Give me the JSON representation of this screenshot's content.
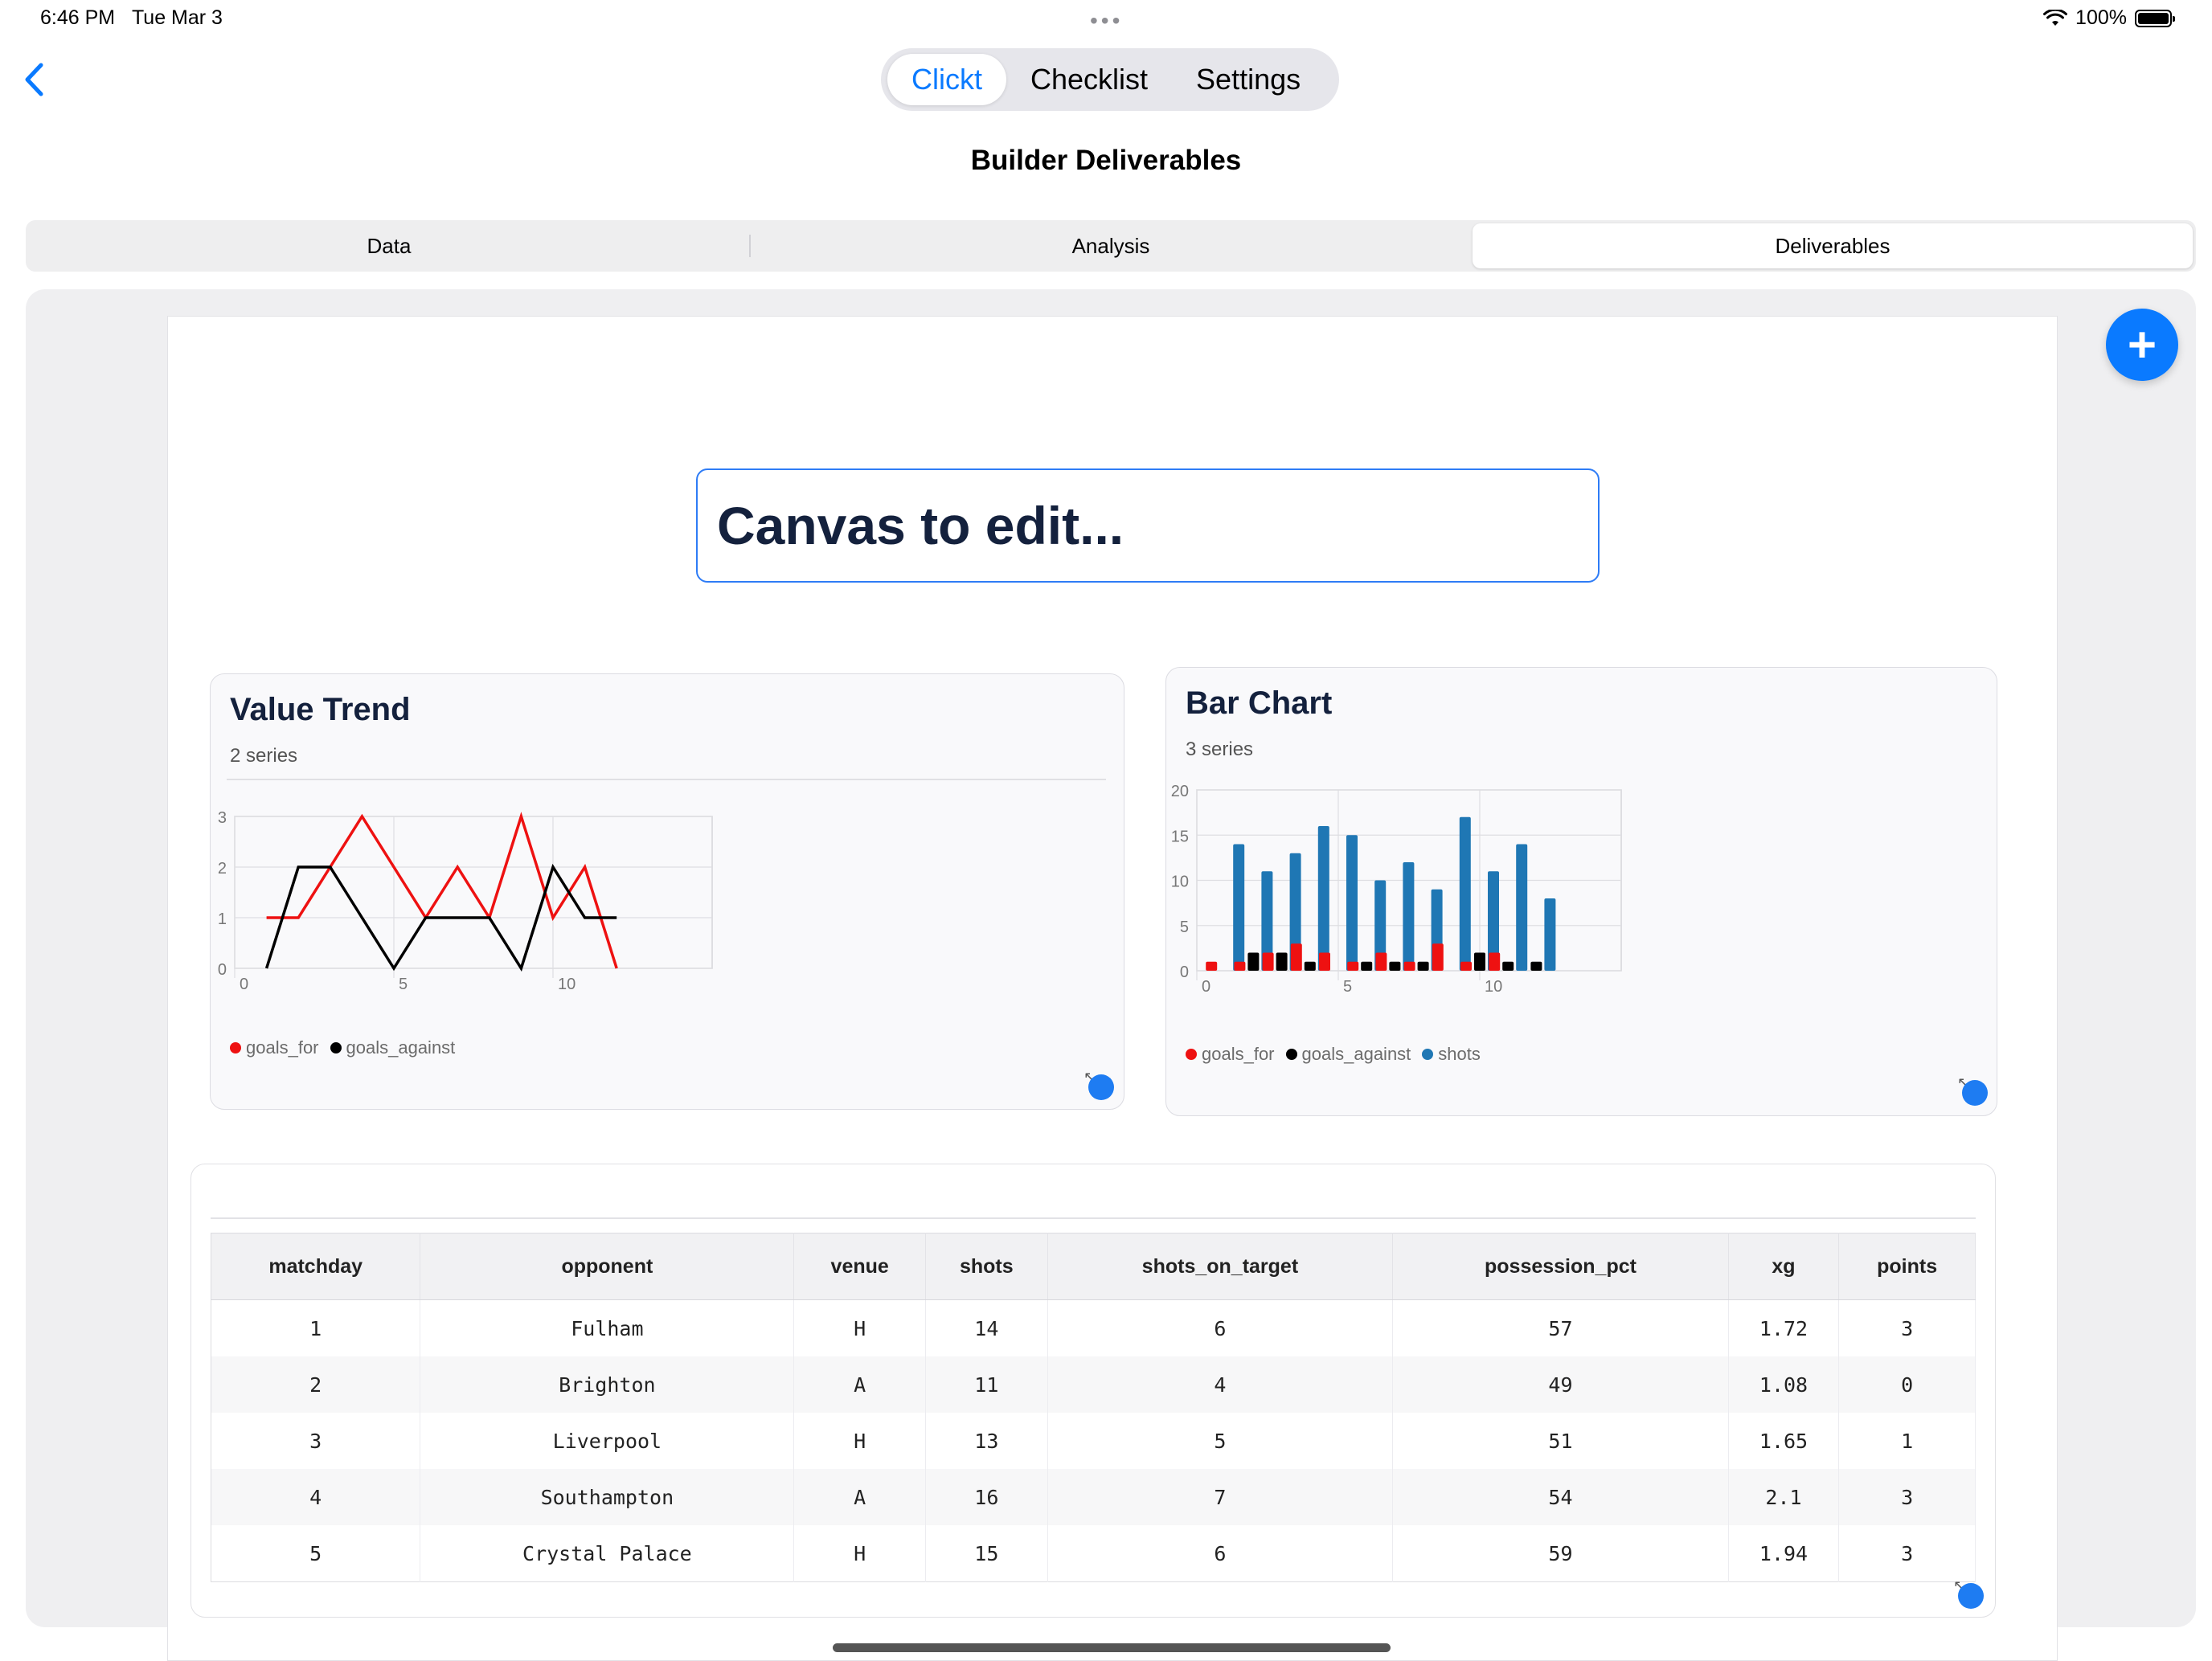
{
  "status": {
    "time": "6:46 PM",
    "date": "Tue Mar 3",
    "battery": "100%"
  },
  "nav": {
    "top_tabs": [
      {
        "label": "Clickt",
        "active": true
      },
      {
        "label": "Checklist",
        "active": false
      },
      {
        "label": "Settings",
        "active": false
      }
    ],
    "page_title": "Builder Deliverables"
  },
  "tabs": [
    {
      "label": "Data",
      "active": false
    },
    {
      "label": "Analysis",
      "active": false
    },
    {
      "label": "Deliverables",
      "active": true
    }
  ],
  "canvas": {
    "title": "Canvas to edit..."
  },
  "colors": {
    "accent": "#0a7aff",
    "goals_for": "#ee1111",
    "goals_against": "#000000",
    "shots": "#1f77b4"
  },
  "chart_data": [
    {
      "type": "line",
      "title": "Value Trend",
      "subtitle": "2 series",
      "xlim": [
        0,
        15
      ],
      "ylim": [
        0,
        3
      ],
      "xticks": [
        0,
        5,
        10
      ],
      "yticks": [
        0,
        1,
        2,
        3
      ],
      "grid": true,
      "legend_position": "bottom-left",
      "x": [
        1,
        2,
        3,
        4,
        5,
        6,
        7,
        8,
        9,
        10,
        11,
        12
      ],
      "series": [
        {
          "name": "goals_for",
          "color": "#ee1111",
          "values": [
            1,
            1,
            2,
            3,
            2,
            1,
            2,
            1,
            3,
            1,
            2,
            0
          ]
        },
        {
          "name": "goals_against",
          "color": "#000000",
          "values": [
            0,
            2,
            2,
            1,
            0,
            1,
            1,
            1,
            0,
            2,
            1,
            1
          ]
        }
      ]
    },
    {
      "type": "bar",
      "title": "Bar Chart",
      "subtitle": "3 series",
      "xlim": [
        0,
        15
      ],
      "ylim": [
        0,
        20
      ],
      "xticks": [
        0,
        5,
        10
      ],
      "yticks": [
        0,
        5,
        10,
        15,
        20
      ],
      "grid": true,
      "legend_position": "bottom-left",
      "x": [
        1,
        2,
        3,
        4,
        5,
        6,
        7,
        8,
        9,
        10,
        11,
        12
      ],
      "series": [
        {
          "name": "goals_for",
          "color": "#ee1111",
          "values": [
            1,
            1,
            2,
            3,
            2,
            1,
            2,
            1,
            3,
            1,
            2,
            0
          ]
        },
        {
          "name": "goals_against",
          "color": "#000000",
          "values": [
            0,
            2,
            2,
            1,
            0,
            1,
            1,
            1,
            0,
            2,
            1,
            1
          ]
        },
        {
          "name": "shots",
          "color": "#1f77b4",
          "values": [
            14,
            11,
            13,
            16,
            15,
            10,
            12,
            9,
            17,
            11,
            14,
            8
          ]
        }
      ]
    }
  ],
  "table": {
    "columns": [
      "matchday",
      "opponent",
      "venue",
      "shots",
      "shots_on_target",
      "possession_pct",
      "xg",
      "points"
    ],
    "rows": [
      [
        "1",
        "Fulham",
        "H",
        "14",
        "6",
        "57",
        "1.72",
        "3"
      ],
      [
        "2",
        "Brighton",
        "A",
        "11",
        "4",
        "49",
        "1.08",
        "0"
      ],
      [
        "3",
        "Liverpool",
        "H",
        "13",
        "5",
        "51",
        "1.65",
        "1"
      ],
      [
        "4",
        "Southampton",
        "A",
        "16",
        "7",
        "54",
        "2.1",
        "3"
      ],
      [
        "5",
        "Crystal Palace",
        "H",
        "15",
        "6",
        "59",
        "1.94",
        "3"
      ]
    ]
  }
}
